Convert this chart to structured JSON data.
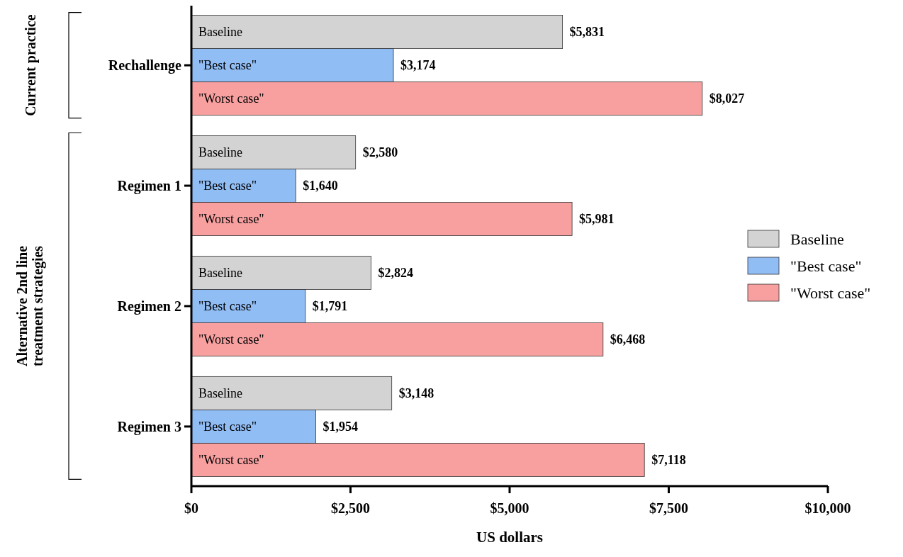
{
  "chart_data": {
    "type": "bar",
    "orientation": "horizontal",
    "categories": [
      "Rechallenge",
      "Regimen 1",
      "Regimen 2",
      "Regimen 3"
    ],
    "series": [
      {
        "name": "Baseline",
        "color": "#d3d3d3",
        "values": [
          5831,
          2580,
          2824,
          3148
        ],
        "value_labels": [
          "$5,831",
          "$2,580",
          "$2,824",
          "$3,148"
        ]
      },
      {
        "name": "\"Best case\"",
        "color": "#91bdf5",
        "values": [
          3174,
          1640,
          1791,
          1954
        ],
        "value_labels": [
          "$3,174",
          "$1,640",
          "$1,791",
          "$1,954"
        ]
      },
      {
        "name": "\"Worst case\"",
        "color": "#f8a0a0",
        "values": [
          8027,
          5981,
          6468,
          7118
        ],
        "value_labels": [
          "$8,027",
          "$5,981",
          "$6,468",
          "$7,118"
        ]
      }
    ],
    "xlim": [
      0,
      10000
    ],
    "xticks": [
      {
        "value": 0,
        "label": "$0"
      },
      {
        "value": 2500,
        "label": "$2,500"
      },
      {
        "value": 5000,
        "label": "$5,000"
      },
      {
        "value": 7500,
        "label": "$7,500"
      },
      {
        "value": 10000,
        "label": "$10,000"
      }
    ],
    "xlabel": "US dollars",
    "legend": "right",
    "grid": false,
    "annotations": [
      "Current practice",
      "Alternative 2nd line treatment strategies"
    ]
  }
}
